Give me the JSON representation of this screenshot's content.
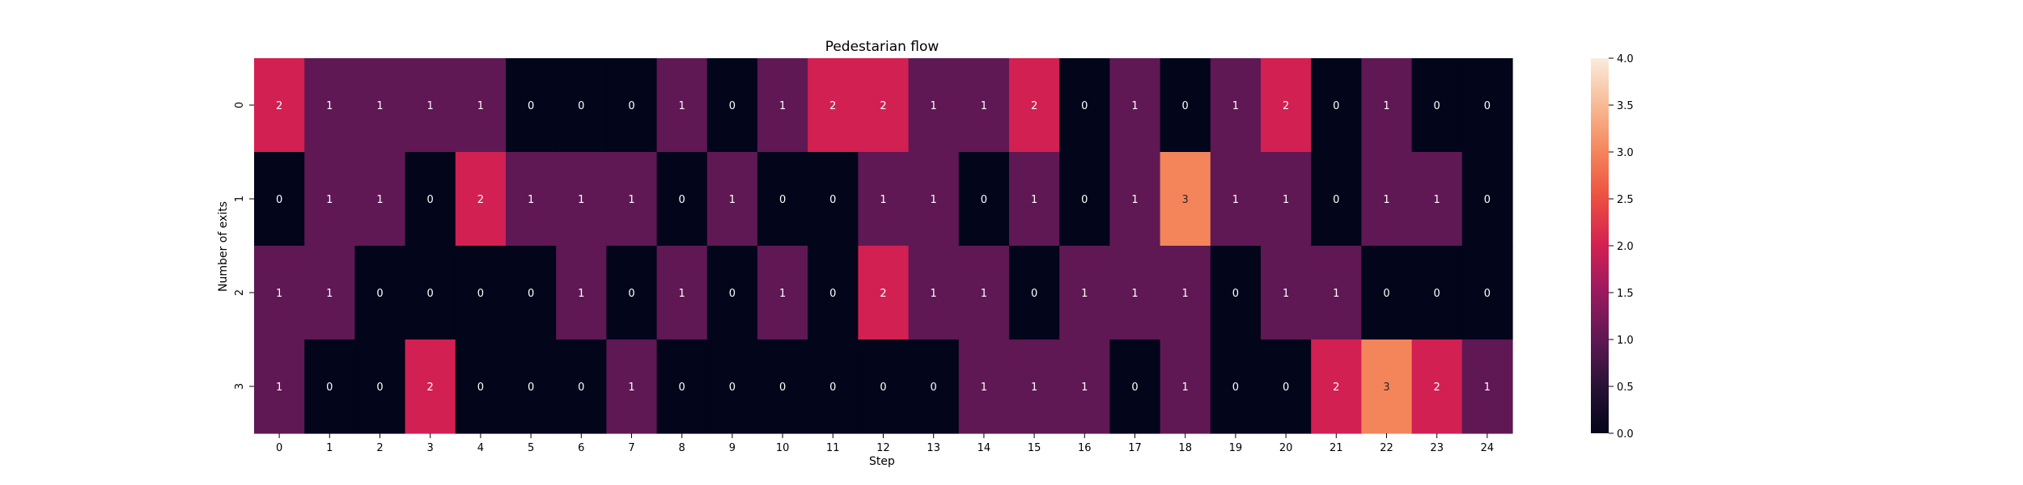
{
  "chart_data": {
    "type": "heatmap",
    "title": "Pedestarian flow",
    "xlabel": "Step",
    "ylabel": "Number of exits",
    "x_categories": [
      "0",
      "1",
      "2",
      "3",
      "4",
      "5",
      "6",
      "7",
      "8",
      "9",
      "10",
      "11",
      "12",
      "13",
      "14",
      "15",
      "16",
      "17",
      "18",
      "19",
      "20",
      "21",
      "22",
      "23",
      "24"
    ],
    "y_categories": [
      "0",
      "1",
      "2",
      "3"
    ],
    "values": [
      [
        2,
        1,
        1,
        1,
        1,
        0,
        0,
        0,
        1,
        0,
        1,
        2,
        2,
        1,
        1,
        2,
        0,
        1,
        0,
        1,
        2,
        0,
        1,
        0,
        0
      ],
      [
        0,
        1,
        1,
        0,
        2,
        1,
        1,
        1,
        0,
        1,
        0,
        0,
        1,
        1,
        0,
        1,
        0,
        1,
        3,
        1,
        1,
        0,
        1,
        1,
        0
      ],
      [
        1,
        1,
        0,
        0,
        0,
        0,
        1,
        0,
        1,
        0,
        1,
        0,
        2,
        1,
        1,
        0,
        1,
        1,
        1,
        0,
        1,
        1,
        0,
        0,
        0
      ],
      [
        1,
        0,
        0,
        2,
        0,
        0,
        0,
        1,
        0,
        0,
        0,
        0,
        0,
        0,
        1,
        1,
        1,
        0,
        1,
        0,
        0,
        2,
        3,
        2,
        1
      ]
    ],
    "vmin": 0,
    "vmax": 4,
    "colorbar_ticks": [
      "0.0",
      "0.5",
      "1.0",
      "1.5",
      "2.0",
      "2.5",
      "3.0",
      "3.5",
      "4.0"
    ],
    "colormap": "rocket",
    "annotate": true,
    "grid": false
  }
}
